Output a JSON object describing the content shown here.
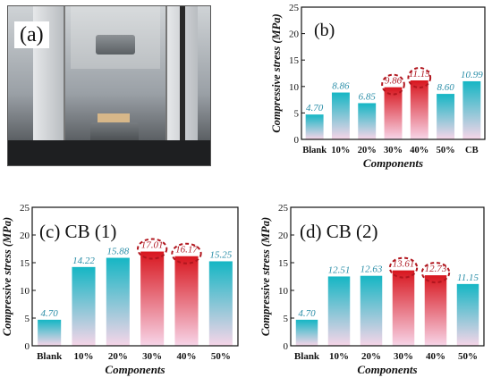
{
  "panel_a": {
    "label": "(a)"
  },
  "colors": {
    "bar_top_teal": "#15b6c4",
    "bar_bottom_pink": "#f7d5e8",
    "bar_top_red": "#d8161e",
    "highlight_circle": "#b1161e",
    "value_label_teal": "#2b8ea8",
    "value_label_red": "#b01e28"
  },
  "chart_data": [
    {
      "id": "b",
      "type": "bar",
      "panel_label": "(b)",
      "ylabel": "Compressive stress (MPa)",
      "xlabel": "Components",
      "ylim": [
        0,
        25
      ],
      "yticks": [
        0,
        5,
        10,
        15,
        20,
        25
      ],
      "categories": [
        "Blank",
        "10%",
        "20%",
        "30%",
        "40%",
        "50%",
        "CB"
      ],
      "values": [
        4.7,
        8.86,
        6.85,
        9.86,
        11.15,
        8.6,
        10.99
      ],
      "value_labels": [
        "4.70",
        "8.86",
        "6.85",
        "9.86",
        "11.15",
        "8.60",
        "10.99"
      ],
      "highlighted": [
        3,
        4
      ]
    },
    {
      "id": "c",
      "type": "bar",
      "panel_label": "(c) CB (1)",
      "ylabel": "Compressive stress (MPa)",
      "xlabel": "Components",
      "ylim": [
        0,
        25
      ],
      "yticks": [
        0,
        5,
        10,
        15,
        20,
        25
      ],
      "categories": [
        "Blank",
        "10%",
        "20%",
        "30%",
        "40%",
        "50%"
      ],
      "values": [
        4.7,
        14.22,
        15.88,
        17.01,
        16.17,
        15.25
      ],
      "value_labels": [
        "4.70",
        "14.22",
        "15.88",
        "17.01",
        "16.17",
        "15.25"
      ],
      "highlighted": [
        3,
        4
      ]
    },
    {
      "id": "d",
      "type": "bar",
      "panel_label": "(d) CB (2)",
      "ylabel": "Compressive stress (MPa)",
      "xlabel": "Components",
      "ylim": [
        0,
        25
      ],
      "yticks": [
        0,
        5,
        10,
        15,
        20,
        25
      ],
      "categories": [
        "Blank",
        "10%",
        "20%",
        "30%",
        "40%",
        "50%"
      ],
      "values": [
        4.7,
        12.51,
        12.63,
        13.61,
        12.73,
        11.15
      ],
      "value_labels": [
        "4.70",
        "12.51",
        "12.63",
        "13.61",
        "12.73",
        "11.15"
      ],
      "highlighted": [
        3,
        4
      ]
    }
  ]
}
